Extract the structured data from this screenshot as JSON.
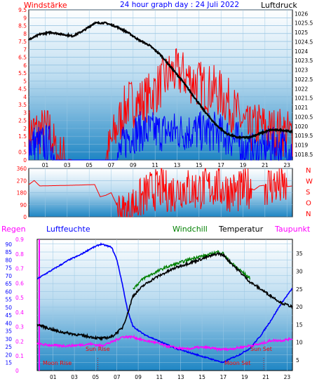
{
  "chart_data": [
    {
      "type": "line",
      "title": "24 hour graph day : 24 Juli 2022",
      "left_axis_label": "Windstärke",
      "right_axis_label": "Luftdruck",
      "left_ticks": [
        "0",
        "0.5",
        "1",
        "1.5",
        "2",
        "2.5",
        "3",
        "3.5",
        "4",
        "4.5",
        "5",
        "5.5",
        "6",
        "6.5",
        "7",
        "7.5",
        "8",
        "8.5",
        "9",
        "9.5"
      ],
      "right_ticks": [
        "1018.5",
        "1019",
        "1019.5",
        "1020",
        "1020.5",
        "1021",
        "1021.5",
        "1022",
        "1022.5",
        "1023",
        "1023.5",
        "1024",
        "1024.5",
        "1025",
        "1025.5",
        "1026"
      ],
      "x_ticks": [
        "01",
        "03",
        "05",
        "07",
        "09",
        "11",
        "13",
        "15",
        "17",
        "19",
        "21",
        "23"
      ],
      "ylim_left": [
        0,
        9.5
      ],
      "ylim_right": [
        1018.2,
        1026.2
      ],
      "series": [
        {
          "key": "pressure",
          "color": "#000000",
          "x": [
            0,
            1,
            2,
            3,
            4,
            5,
            6,
            7,
            8,
            9,
            10,
            11,
            12,
            13,
            14,
            15,
            16,
            17,
            18,
            19,
            20,
            21,
            22,
            23,
            24
          ],
          "values": [
            1024.6,
            1024.9,
            1025.0,
            1024.9,
            1024.8,
            1025.1,
            1025.5,
            1025.5,
            1025.3,
            1025.0,
            1024.6,
            1024.3,
            1023.8,
            1023.1,
            1022.4,
            1021.6,
            1020.8,
            1020.1,
            1019.6,
            1019.4,
            1019.4,
            1019.6,
            1019.8,
            1019.8,
            1019.7
          ]
        },
        {
          "key": "gust",
          "color": "#ff0000",
          "x": [
            0,
            2,
            2.5,
            4,
            5,
            6,
            7,
            8,
            9,
            10,
            11,
            12,
            13,
            14,
            15,
            16,
            17,
            18,
            19,
            20,
            21,
            22,
            23,
            24
          ],
          "values": [
            1.8,
            1.8,
            0.2,
            0,
            0,
            0,
            0,
            2.0,
            3.6,
            3.6,
            4.0,
            4.8,
            5.5,
            5.4,
            5.0,
            4.6,
            4.4,
            3.8,
            2.8,
            1.8,
            2.2,
            1.8,
            1.8,
            1.5
          ]
        },
        {
          "key": "wind",
          "color": "#0000ff",
          "x": [
            0,
            2,
            2.5,
            4,
            8,
            9,
            10,
            11,
            12,
            13,
            14,
            15,
            16,
            17,
            18,
            19,
            20,
            21,
            22,
            23,
            24
          ],
          "values": [
            1.0,
            1.0,
            0,
            0,
            0,
            1.5,
            1.8,
            1.8,
            1.8,
            1.8,
            1.8,
            1.8,
            1.8,
            1.8,
            1.5,
            1.2,
            0.4,
            0.6,
            0.8,
            0.8,
            0.6
          ]
        }
      ]
    },
    {
      "type": "scatter",
      "left_ticks": [
        "0",
        "90",
        "180",
        "270",
        "360"
      ],
      "right_labels": [
        "N",
        "W",
        "S",
        "O",
        "N"
      ],
      "ylim": [
        0,
        360
      ],
      "series": [
        {
          "key": "direction",
          "color": "#ff0000",
          "x": [
            0,
            0.5,
            1,
            4,
            6,
            6.5,
            7,
            7.5,
            8,
            8.5,
            9,
            10,
            11,
            12,
            13,
            14,
            15,
            16,
            17,
            18,
            19,
            20,
            20.5,
            21,
            22,
            23,
            24
          ],
          "values": [
            240,
            270,
            230,
            235,
            240,
            150,
            160,
            180,
            90,
            20,
            40,
            120,
            190,
            210,
            180,
            220,
            200,
            210,
            230,
            200,
            180,
            220,
            200,
            230,
            240,
            220,
            230
          ]
        }
      ]
    },
    {
      "type": "line",
      "left_axis_labels": [
        "Regen",
        "Luftfeuchte"
      ],
      "legend": [
        "Windchill",
        "Temperatur",
        "Taupunkt"
      ],
      "left_ticks_rain": [
        "0",
        "0.1",
        "0.2",
        "0.3",
        "0.4",
        "0.5",
        "0.6",
        "0.7",
        "0.8",
        "0.9"
      ],
      "left_ticks_humidity": [
        "15",
        "20",
        "25",
        "30",
        "35",
        "40",
        "45",
        "50",
        "55",
        "60",
        "65",
        "70",
        "75",
        "80",
        "85",
        "90"
      ],
      "right_ticks": [
        "5",
        "10",
        "15",
        "20",
        "25",
        "30",
        "35"
      ],
      "ylim_rain": [
        0,
        0.9
      ],
      "ylim_humidity": [
        10,
        93
      ],
      "ylim_temp": [
        2,
        39
      ],
      "annotations": [
        "Moon Rise",
        "Sun Rise",
        "Moon Set",
        "Sun Set"
      ],
      "series": [
        {
          "key": "humidity",
          "color": "#0000ff",
          "x": [
            0,
            1,
            2,
            3,
            4,
            5,
            6,
            7,
            7.5,
            8,
            8.5,
            9,
            10,
            11,
            12,
            13,
            14,
            15,
            16,
            17,
            17.5,
            18,
            19,
            20,
            21,
            22,
            23,
            24
          ],
          "values": [
            68,
            72,
            76,
            80,
            83,
            87,
            90,
            88,
            80,
            65,
            48,
            38,
            33,
            30,
            27,
            24,
            22,
            20,
            18,
            16,
            15,
            17,
            20,
            24,
            32,
            42,
            53,
            62
          ]
        },
        {
          "key": "temperature",
          "color": "#000000",
          "x": [
            0,
            1,
            2,
            3,
            4,
            5,
            6,
            7,
            8,
            8.5,
            9,
            10,
            11,
            12,
            13,
            14,
            15,
            16,
            17,
            17.5,
            18,
            19,
            20,
            21,
            22,
            23,
            24
          ],
          "values": [
            15,
            14,
            13,
            12.5,
            12,
            11.5,
            11,
            11.5,
            14,
            18,
            23,
            26,
            28,
            29.5,
            31,
            32,
            33,
            34,
            35,
            34.5,
            33,
            30,
            27,
            25,
            23,
            21,
            20
          ]
        },
        {
          "key": "windchill",
          "color": "#008000",
          "x": [
            9,
            10,
            11,
            12,
            13,
            14,
            15,
            16,
            17,
            17.5,
            18,
            19,
            20
          ],
          "values": [
            25,
            28,
            29.5,
            31,
            32,
            33,
            34,
            34.5,
            35.5,
            35,
            33,
            30.5,
            28
          ]
        },
        {
          "key": "dewpoint",
          "color": "#ff00ff",
          "x": [
            0,
            1,
            2,
            3,
            4,
            5,
            6,
            7,
            8,
            9,
            10,
            11,
            12,
            13,
            14,
            15,
            16,
            17,
            18,
            19,
            20,
            21,
            22,
            23,
            24
          ],
          "values": [
            9.5,
            9.2,
            9.0,
            9.0,
            9.2,
            9.5,
            9.0,
            10.0,
            11.5,
            11.5,
            10.5,
            10.0,
            9.0,
            8.5,
            8.0,
            8.5,
            8.5,
            8.0,
            8.0,
            8.5,
            9.0,
            9.5,
            10.5,
            10.5,
            11.0
          ]
        },
        {
          "key": "rain",
          "color": "#ff00ff",
          "x": [
            0,
            24
          ],
          "values": [
            0,
            0
          ]
        }
      ]
    }
  ]
}
